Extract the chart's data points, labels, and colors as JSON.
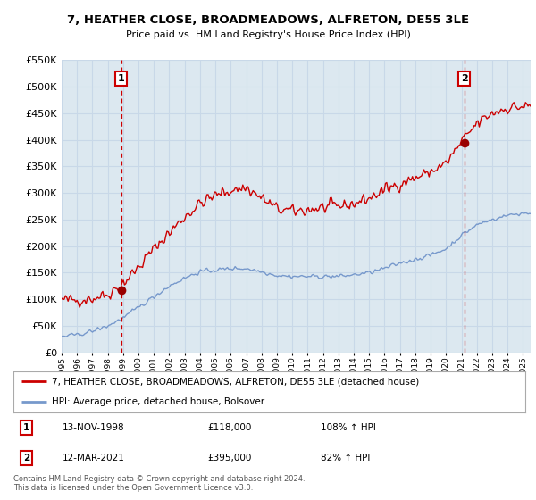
{
  "title": "7, HEATHER CLOSE, BROADMEADOWS, ALFRETON, DE55 3LE",
  "subtitle": "Price paid vs. HM Land Registry's House Price Index (HPI)",
  "legend_line1": "7, HEATHER CLOSE, BROADMEADOWS, ALFRETON, DE55 3LE (detached house)",
  "legend_line2": "HPI: Average price, detached house, Bolsover",
  "point1_label": "1",
  "point1_date": "13-NOV-1998",
  "point1_price": "£118,000",
  "point1_hpi": "108% ↑ HPI",
  "point2_label": "2",
  "point2_date": "12-MAR-2021",
  "point2_price": "£395,000",
  "point2_hpi": "82% ↑ HPI",
  "footer": "Contains HM Land Registry data © Crown copyright and database right 2024.\nThis data is licensed under the Open Government Licence v3.0.",
  "red_color": "#cc0000",
  "blue_color": "#7799cc",
  "point_color": "#990000",
  "vline_color": "#cc0000",
  "grid_color": "#c8d8e8",
  "plot_bg": "#dce8f0",
  "bg_color": "#ffffff",
  "ylim": [
    0,
    550000
  ],
  "xlim_start": 1995.0,
  "xlim_end": 2025.5,
  "point1_x": 1998.87,
  "point1_y": 118000,
  "point2_x": 2021.19,
  "point2_y": 395000
}
